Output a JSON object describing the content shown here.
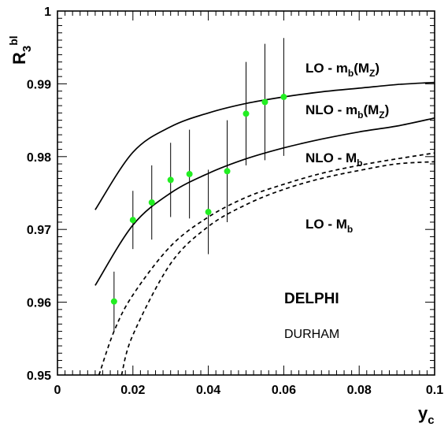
{
  "chart_data": {
    "type": "scatter",
    "xlabel": {
      "main": "y",
      "sub": "c"
    },
    "ylabel": {
      "main": "R",
      "sub": "3",
      "sup": "bl"
    },
    "xlim": [
      0,
      0.1
    ],
    "ylim": [
      0.95,
      1.0
    ],
    "x_ticks": [
      "0",
      "0.02",
      "0.04",
      "0.06",
      "0.08",
      "0.1"
    ],
    "y_ticks": [
      "0.95",
      "0.96",
      "0.97",
      "0.98",
      "0.99",
      "1"
    ],
    "data_color": "#22ee22",
    "data": {
      "x": [
        0.015,
        0.02,
        0.025,
        0.03,
        0.035,
        0.04,
        0.045,
        0.05,
        0.055,
        0.06
      ],
      "y": [
        0.9601,
        0.9713,
        0.9737,
        0.9768,
        0.9776,
        0.9724,
        0.978,
        0.9859,
        0.9875,
        0.9882
      ],
      "err": [
        0.0041,
        0.004,
        0.0051,
        0.0051,
        0.0061,
        0.0058,
        0.007,
        0.0071,
        0.008,
        0.0081
      ]
    },
    "curves": [
      {
        "name": "LO - m_b(M_Z)",
        "style": "solid",
        "x": [
          0.01,
          0.02,
          0.03,
          0.04,
          0.05,
          0.06,
          0.07,
          0.08,
          0.09,
          0.1
        ],
        "y": [
          0.9727,
          0.9806,
          0.9841,
          0.986,
          0.9873,
          0.9882,
          0.9889,
          0.9894,
          0.9899,
          0.9902
        ]
      },
      {
        "name": "NLO - m_b(M_Z)",
        "style": "solid",
        "x": [
          0.01,
          0.02,
          0.03,
          0.04,
          0.05,
          0.06,
          0.07,
          0.08,
          0.09,
          0.1
        ],
        "y": [
          0.9623,
          0.9706,
          0.975,
          0.9777,
          0.9797,
          0.9812,
          0.9824,
          0.9834,
          0.9842,
          0.9853
        ]
      },
      {
        "name": "NLO - M_b",
        "style": "dashed",
        "x": [
          0.017,
          0.02,
          0.03,
          0.04,
          0.05,
          0.06,
          0.07,
          0.08,
          0.09,
          0.1
        ],
        "y": [
          0.95,
          0.9555,
          0.9653,
          0.9704,
          0.9734,
          0.9755,
          0.977,
          0.9781,
          0.979,
          0.9793
        ]
      },
      {
        "name": "LO - M_b",
        "style": "dashed",
        "x": [
          0.011,
          0.015,
          0.02,
          0.03,
          0.04,
          0.05,
          0.06,
          0.07,
          0.08,
          0.09,
          0.1
        ],
        "y": [
          0.95,
          0.956,
          0.961,
          0.9677,
          0.9717,
          0.9744,
          0.9762,
          0.9777,
          0.9788,
          0.9797,
          0.9805
        ]
      }
    ],
    "annotations": {
      "lo_mbmz": {
        "main": "LO - m",
        "sub1": "b",
        "mid": "(M",
        "sub2": "Z",
        "end": ")"
      },
      "nlo_mbmz": {
        "main": "NLO - m",
        "sub1": "b",
        "mid": "(M",
        "sub2": "Z",
        "end": ")"
      },
      "nlo_Mb": {
        "main": "NLO - M",
        "sub1": "b"
      },
      "lo_Mb": {
        "main": "LO - M",
        "sub1": "b"
      },
      "experiment": "DELPHI",
      "algorithm": "DURHAM"
    }
  }
}
